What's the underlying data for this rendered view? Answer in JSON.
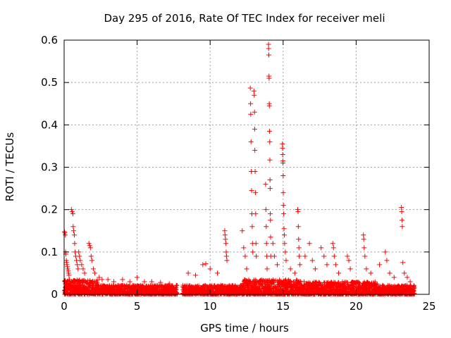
{
  "chart_data": {
    "type": "scatter",
    "title": "Day 295 of 2016, Rate Of TEC Index for receiver meli",
    "xlabel": "GPS time / hours",
    "ylabel": "ROTI / TECUs",
    "xlim": [
      0,
      25
    ],
    "ylim": [
      0,
      0.6
    ],
    "x_ticks": [
      0,
      5,
      10,
      15,
      20,
      25
    ],
    "y_ticks": [
      0,
      0.1,
      0.2,
      0.3,
      0.4,
      0.5,
      0.6
    ],
    "grid": true,
    "marker": "+",
    "color": "#ff0000",
    "series": [
      {
        "name": "ROTI",
        "points": [
          [
            0.02,
            0.148
          ],
          [
            0.05,
            0.145
          ],
          [
            0.08,
            0.14
          ],
          [
            0.1,
            0.1
          ],
          [
            0.12,
            0.095
          ],
          [
            0.15,
            0.08
          ],
          [
            0.18,
            0.075
          ],
          [
            0.2,
            0.07
          ],
          [
            0.22,
            0.065
          ],
          [
            0.25,
            0.06
          ],
          [
            0.28,
            0.055
          ],
          [
            0.3,
            0.05
          ],
          [
            0.33,
            0.045
          ],
          [
            0.36,
            0.035
          ],
          [
            0.4,
            0.03
          ],
          [
            0.5,
            0.2
          ],
          [
            0.55,
            0.195
          ],
          [
            0.6,
            0.19
          ],
          [
            0.62,
            0.16
          ],
          [
            0.65,
            0.15
          ],
          [
            0.7,
            0.14
          ],
          [
            0.72,
            0.12
          ],
          [
            0.75,
            0.1
          ],
          [
            0.8,
            0.09
          ],
          [
            0.85,
            0.08
          ],
          [
            0.9,
            0.07
          ],
          [
            0.95,
            0.06
          ],
          [
            1.0,
            0.1
          ],
          [
            1.05,
            0.09
          ],
          [
            1.1,
            0.08
          ],
          [
            1.2,
            0.07
          ],
          [
            1.3,
            0.06
          ],
          [
            1.4,
            0.05
          ],
          [
            1.7,
            0.12
          ],
          [
            1.75,
            0.115
          ],
          [
            1.8,
            0.11
          ],
          [
            1.85,
            0.09
          ],
          [
            1.9,
            0.08
          ],
          [
            2.0,
            0.06
          ],
          [
            2.1,
            0.05
          ],
          [
            2.4,
            0.04
          ],
          [
            2.6,
            0.035
          ],
          [
            3.0,
            0.035
          ],
          [
            3.4,
            0.03
          ],
          [
            4.0,
            0.035
          ],
          [
            4.5,
            0.03
          ],
          [
            5.0,
            0.04
          ],
          [
            5.5,
            0.03
          ],
          [
            6.0,
            0.03
          ],
          [
            6.6,
            0.028
          ],
          [
            7.2,
            0.025
          ],
          [
            8.5,
            0.05
          ],
          [
            9.0,
            0.045
          ],
          [
            9.5,
            0.07
          ],
          [
            9.7,
            0.072
          ],
          [
            10.0,
            0.06
          ],
          [
            10.5,
            0.05
          ],
          [
            11.0,
            0.15
          ],
          [
            11.02,
            0.14
          ],
          [
            11.05,
            0.13
          ],
          [
            11.08,
            0.12
          ],
          [
            11.1,
            0.1
          ],
          [
            11.12,
            0.09
          ],
          [
            11.15,
            0.08
          ],
          [
            12.2,
            0.15
          ],
          [
            12.3,
            0.11
          ],
          [
            12.4,
            0.09
          ],
          [
            12.5,
            0.06
          ],
          [
            12.75,
            0.487
          ],
          [
            12.77,
            0.45
          ],
          [
            12.78,
            0.425
          ],
          [
            12.8,
            0.36
          ],
          [
            12.82,
            0.29
          ],
          [
            12.84,
            0.245
          ],
          [
            12.86,
            0.19
          ],
          [
            12.88,
            0.16
          ],
          [
            12.9,
            0.12
          ],
          [
            12.92,
            0.1
          ],
          [
            13.0,
            0.48
          ],
          [
            13.02,
            0.47
          ],
          [
            13.04,
            0.43
          ],
          [
            13.05,
            0.39
          ],
          [
            13.06,
            0.34
          ],
          [
            13.08,
            0.29
          ],
          [
            13.1,
            0.24
          ],
          [
            13.12,
            0.19
          ],
          [
            13.14,
            0.12
          ],
          [
            13.16,
            0.09
          ],
          [
            13.8,
            0.26
          ],
          [
            13.82,
            0.2
          ],
          [
            13.84,
            0.16
          ],
          [
            13.86,
            0.12
          ],
          [
            13.88,
            0.09
          ],
          [
            13.9,
            0.06
          ],
          [
            14.0,
            0.59
          ],
          [
            14.01,
            0.58
          ],
          [
            14.02,
            0.565
          ],
          [
            14.03,
            0.515
          ],
          [
            14.04,
            0.51
          ],
          [
            14.05,
            0.45
          ],
          [
            14.06,
            0.445
          ],
          [
            14.07,
            0.385
          ],
          [
            14.08,
            0.36
          ],
          [
            14.09,
            0.317
          ],
          [
            14.1,
            0.27
          ],
          [
            14.11,
            0.25
          ],
          [
            14.12,
            0.19
          ],
          [
            14.13,
            0.175
          ],
          [
            14.14,
            0.135
          ],
          [
            14.15,
            0.09
          ],
          [
            14.3,
            0.12
          ],
          [
            14.4,
            0.09
          ],
          [
            14.6,
            0.07
          ],
          [
            14.95,
            0.355
          ],
          [
            14.96,
            0.345
          ],
          [
            14.97,
            0.33
          ],
          [
            14.98,
            0.315
          ],
          [
            14.99,
            0.31
          ],
          [
            15.0,
            0.28
          ],
          [
            15.01,
            0.24
          ],
          [
            15.02,
            0.21
          ],
          [
            15.04,
            0.19
          ],
          [
            15.06,
            0.155
          ],
          [
            15.08,
            0.14
          ],
          [
            15.1,
            0.12
          ],
          [
            15.15,
            0.1
          ],
          [
            15.2,
            0.08
          ],
          [
            15.5,
            0.06
          ],
          [
            15.8,
            0.05
          ],
          [
            16.0,
            0.2
          ],
          [
            16.02,
            0.195
          ],
          [
            16.04,
            0.16
          ],
          [
            16.06,
            0.13
          ],
          [
            16.08,
            0.11
          ],
          [
            16.1,
            0.09
          ],
          [
            16.15,
            0.07
          ],
          [
            16.5,
            0.09
          ],
          [
            16.8,
            0.12
          ],
          [
            17.0,
            0.08
          ],
          [
            17.2,
            0.06
          ],
          [
            17.6,
            0.11
          ],
          [
            17.8,
            0.09
          ],
          [
            18.0,
            0.07
          ],
          [
            18.4,
            0.12
          ],
          [
            18.45,
            0.11
          ],
          [
            18.5,
            0.09
          ],
          [
            18.6,
            0.07
          ],
          [
            18.8,
            0.05
          ],
          [
            19.4,
            0.09
          ],
          [
            19.5,
            0.08
          ],
          [
            19.6,
            0.06
          ],
          [
            20.5,
            0.14
          ],
          [
            20.52,
            0.13
          ],
          [
            20.55,
            0.11
          ],
          [
            20.6,
            0.09
          ],
          [
            20.7,
            0.06
          ],
          [
            21.0,
            0.05
          ],
          [
            21.6,
            0.07
          ],
          [
            22.0,
            0.1
          ],
          [
            22.1,
            0.08
          ],
          [
            22.3,
            0.05
          ],
          [
            22.6,
            0.04
          ],
          [
            23.1,
            0.205
          ],
          [
            23.12,
            0.195
          ],
          [
            23.14,
            0.175
          ],
          [
            23.16,
            0.16
          ],
          [
            23.2,
            0.075
          ],
          [
            23.3,
            0.05
          ],
          [
            23.5,
            0.04
          ],
          [
            23.7,
            0.03
          ]
        ]
      }
    ]
  }
}
